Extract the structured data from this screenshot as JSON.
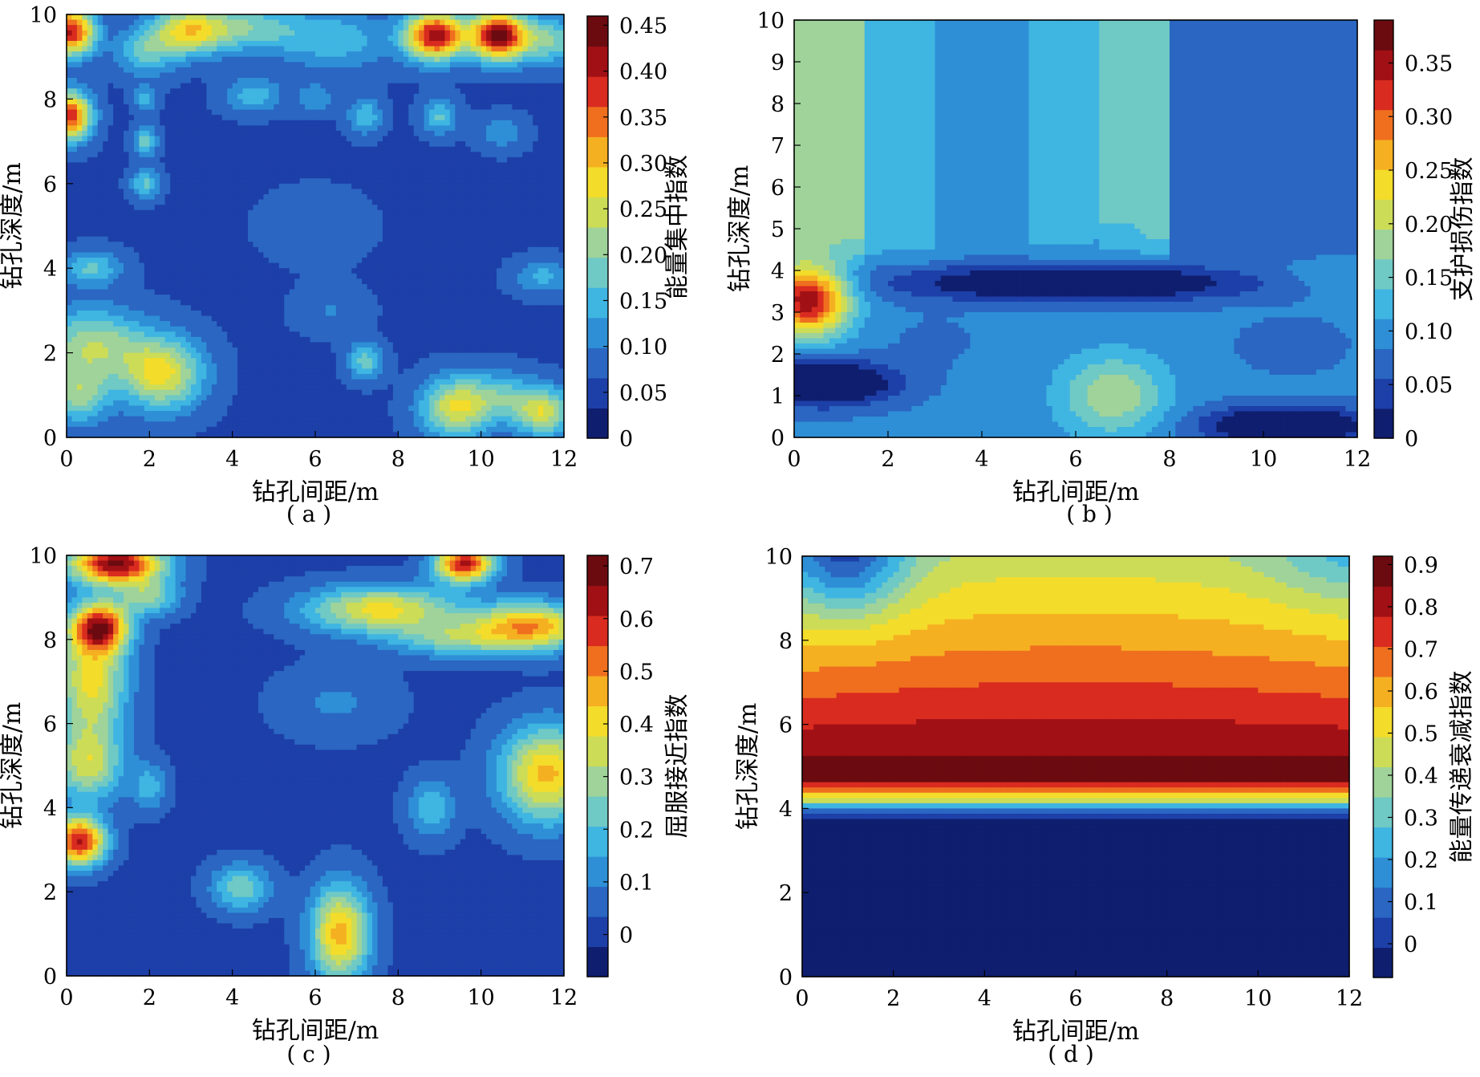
{
  "figure": {
    "captions": [
      "( a )",
      "( b )",
      "( c )",
      "( d )"
    ]
  },
  "colormap": [
    "#0f1e6e",
    "#1d3fa8",
    "#2a66c2",
    "#2e8fd6",
    "#3fb5e2",
    "#6fc9c4",
    "#9fd39a",
    "#cddc57",
    "#f4dc2a",
    "#f5b021",
    "#ef6f1f",
    "#d92b1f",
    "#a11014",
    "#6b0b10"
  ],
  "chart_data": [
    {
      "id": "a",
      "type": "heatmap",
      "xlabel": "钻孔间距/m",
      "ylabel": "钻孔深度/m",
      "colorbar_label": "能量集中指数",
      "xlim": [
        0,
        12
      ],
      "ylim": [
        0,
        10
      ],
      "xticks": [
        0,
        2,
        4,
        6,
        8,
        10,
        12
      ],
      "yticks": [
        0,
        2,
        4,
        6,
        8,
        10
      ],
      "clim": [
        0,
        0.46
      ],
      "cticks": [
        0,
        0.05,
        0.1,
        0.15,
        0.2,
        0.25,
        0.3,
        0.35,
        0.4,
        0.45
      ],
      "ctick_labels": [
        "0",
        "0.05",
        "0.10",
        "0.15",
        "0.20",
        "0.25",
        "0.30",
        "0.35",
        "0.40",
        "0.45"
      ],
      "base": 0.06,
      "hotspots": [
        {
          "x": 0.1,
          "y": 9.6,
          "v": 0.4,
          "sx": 0.4,
          "sy": 0.4
        },
        {
          "x": 2.9,
          "y": 9.6,
          "v": 0.24,
          "sx": 0.6,
          "sy": 0.4
        },
        {
          "x": 1.9,
          "y": 9.1,
          "v": 0.17,
          "sx": 0.5,
          "sy": 0.4
        },
        {
          "x": 4.2,
          "y": 9.7,
          "v": 0.19,
          "sx": 1.0,
          "sy": 0.4
        },
        {
          "x": 6.5,
          "y": 9.4,
          "v": 0.15,
          "sx": 1.0,
          "sy": 0.5
        },
        {
          "x": 8.9,
          "y": 9.5,
          "v": 0.42,
          "sx": 0.5,
          "sy": 0.4
        },
        {
          "x": 10.4,
          "y": 9.5,
          "v": 0.44,
          "sx": 0.45,
          "sy": 0.4
        },
        {
          "x": 11.6,
          "y": 9.4,
          "v": 0.2,
          "sx": 0.6,
          "sy": 0.4
        },
        {
          "x": 0.1,
          "y": 7.6,
          "v": 0.38,
          "sx": 0.35,
          "sy": 0.4
        },
        {
          "x": 1.9,
          "y": 8.0,
          "v": 0.15,
          "sx": 0.2,
          "sy": 0.2
        },
        {
          "x": 1.9,
          "y": 7.0,
          "v": 0.18,
          "sx": 0.2,
          "sy": 0.25
        },
        {
          "x": 1.9,
          "y": 6.0,
          "v": 0.17,
          "sx": 0.25,
          "sy": 0.25
        },
        {
          "x": 4.5,
          "y": 8.1,
          "v": 0.15,
          "sx": 0.5,
          "sy": 0.3
        },
        {
          "x": 6.0,
          "y": 8.0,
          "v": 0.13,
          "sx": 0.3,
          "sy": 0.25
        },
        {
          "x": 7.2,
          "y": 7.6,
          "v": 0.16,
          "sx": 0.3,
          "sy": 0.3
        },
        {
          "x": 9.0,
          "y": 7.6,
          "v": 0.17,
          "sx": 0.3,
          "sy": 0.3
        },
        {
          "x": 10.5,
          "y": 7.2,
          "v": 0.12,
          "sx": 0.4,
          "sy": 0.3
        },
        {
          "x": 6.0,
          "y": 5.0,
          "v": 0.09,
          "sx": 0.9,
          "sy": 0.6
        },
        {
          "x": 0.6,
          "y": 4.0,
          "v": 0.17,
          "sx": 0.5,
          "sy": 0.3
        },
        {
          "x": 11.5,
          "y": 3.8,
          "v": 0.14,
          "sx": 0.5,
          "sy": 0.3
        },
        {
          "x": 0.6,
          "y": 2.2,
          "v": 0.22,
          "sx": 0.9,
          "sy": 0.6
        },
        {
          "x": 2.3,
          "y": 1.5,
          "v": 0.27,
          "sx": 0.7,
          "sy": 0.6
        },
        {
          "x": 0.3,
          "y": 1.0,
          "v": 0.2,
          "sx": 0.5,
          "sy": 0.5
        },
        {
          "x": 7.2,
          "y": 1.8,
          "v": 0.18,
          "sx": 0.3,
          "sy": 0.3
        },
        {
          "x": 6.4,
          "y": 3.0,
          "v": 0.1,
          "sx": 0.6,
          "sy": 0.4
        },
        {
          "x": 9.4,
          "y": 0.7,
          "v": 0.26,
          "sx": 0.6,
          "sy": 0.5
        },
        {
          "x": 11.5,
          "y": 0.6,
          "v": 0.25,
          "sx": 0.5,
          "sy": 0.4
        },
        {
          "x": 10.5,
          "y": 1.0,
          "v": 0.15,
          "sx": 0.6,
          "sy": 0.4
        }
      ]
    },
    {
      "id": "b",
      "type": "heatmap",
      "xlabel": "钻孔间距/m",
      "ylabel": "钻孔深度/m",
      "colorbar_label": "支护损伤指数",
      "xlim": [
        0,
        12
      ],
      "ylim": [
        0,
        10
      ],
      "xticks": [
        0,
        2,
        4,
        6,
        8,
        10,
        12
      ],
      "yticks": [
        0,
        1,
        2,
        3,
        4,
        5,
        6,
        7,
        8,
        9,
        10
      ],
      "clim": [
        0,
        0.39
      ],
      "cticks": [
        0,
        0.05,
        0.1,
        0.15,
        0.2,
        0.25,
        0.3,
        0.35
      ],
      "ctick_labels": [
        "0",
        "0.05",
        "0.10",
        "0.15",
        "0.20",
        "0.25",
        "0.30",
        "0.35"
      ],
      "upper_bands": [
        {
          "x_from": 0,
          "x_to": 1.5,
          "v": 0.17
        },
        {
          "x_from": 1.5,
          "x_to": 3.0,
          "v": 0.13
        },
        {
          "x_from": 3.0,
          "x_to": 5.0,
          "v": 0.1
        },
        {
          "x_from": 5.0,
          "x_to": 6.5,
          "v": 0.12
        },
        {
          "x_from": 6.5,
          "x_to": 8.0,
          "v": 0.14
        },
        {
          "x_from": 8.0,
          "x_to": 9.5,
          "v": 0.08
        },
        {
          "x_from": 9.5,
          "x_to": 12,
          "v": 0.06
        }
      ],
      "upper_from_y": 4.0,
      "base": 0.09,
      "hotspots": [
        {
          "x": 0.3,
          "y": 3.3,
          "v": 0.36,
          "sx": 0.6,
          "sy": 0.6
        },
        {
          "x": 0.6,
          "y": 1.3,
          "v": -0.07,
          "sx": 1.0,
          "sy": 0.35
        },
        {
          "x": 3.0,
          "y": 2.3,
          "v": 0.08,
          "sx": 0.8,
          "sy": 0.5
        },
        {
          "x": 6.8,
          "y": 1.0,
          "v": 0.19,
          "sx": 0.8,
          "sy": 0.7
        },
        {
          "x": 11.5,
          "y": 3.9,
          "v": 0.11,
          "sx": 0.8,
          "sy": 0.3
        },
        {
          "x": 10.6,
          "y": 2.2,
          "v": 0.06,
          "sx": 0.7,
          "sy": 0.4
        },
        {
          "x": 6.0,
          "y": 3.7,
          "v": -0.04,
          "sx": 2.5,
          "sy": 0.3
        },
        {
          "x": 10.5,
          "y": 0.3,
          "v": -0.05,
          "sx": 1.2,
          "sy": 0.3
        },
        {
          "x": 6.8,
          "y": 4.7,
          "v": 0.08,
          "sx": 0.3,
          "sy": 0.2
        }
      ]
    },
    {
      "id": "c",
      "type": "heatmap",
      "xlabel": "钻孔间距/m",
      "ylabel": "钻孔深度/m",
      "colorbar_label": "屈服接近指数",
      "xlim": [
        0,
        12
      ],
      "ylim": [
        0,
        10
      ],
      "xticks": [
        0,
        2,
        4,
        6,
        8,
        10,
        12
      ],
      "yticks": [
        0,
        2,
        4,
        6,
        8,
        10
      ],
      "clim": [
        -0.08,
        0.72
      ],
      "cticks": [
        0,
        0.1,
        0.2,
        0.3,
        0.4,
        0.5,
        0.6,
        0.7
      ],
      "ctick_labels": [
        "0",
        "0.1",
        "0.2",
        "0.3",
        "0.4",
        "0.5",
        "0.6",
        "0.7"
      ],
      "base": 0.02,
      "hotspots": [
        {
          "x": 1.2,
          "y": 9.8,
          "v": 0.68,
          "sx": 0.8,
          "sy": 0.35
        },
        {
          "x": 9.6,
          "y": 9.8,
          "v": 0.62,
          "sx": 0.5,
          "sy": 0.3
        },
        {
          "x": 0.8,
          "y": 8.3,
          "v": 0.56,
          "sx": 0.5,
          "sy": 0.4
        },
        {
          "x": 0.6,
          "y": 7.0,
          "v": 0.4,
          "sx": 0.6,
          "sy": 1.0
        },
        {
          "x": 0.5,
          "y": 5.0,
          "v": 0.32,
          "sx": 0.6,
          "sy": 0.6
        },
        {
          "x": 0.3,
          "y": 3.2,
          "v": 0.62,
          "sx": 0.45,
          "sy": 0.4
        },
        {
          "x": 7.6,
          "y": 8.7,
          "v": 0.4,
          "sx": 1.3,
          "sy": 0.4
        },
        {
          "x": 11.2,
          "y": 8.3,
          "v": 0.48,
          "sx": 1.0,
          "sy": 0.4
        },
        {
          "x": 11.6,
          "y": 4.8,
          "v": 0.45,
          "sx": 0.8,
          "sy": 0.8
        },
        {
          "x": 9.3,
          "y": 8.0,
          "v": 0.22,
          "sx": 1.0,
          "sy": 0.3
        },
        {
          "x": 4.2,
          "y": 2.1,
          "v": 0.25,
          "sx": 0.5,
          "sy": 0.4
        },
        {
          "x": 6.6,
          "y": 1.0,
          "v": 0.46,
          "sx": 0.5,
          "sy": 0.8
        },
        {
          "x": 2.0,
          "y": 4.5,
          "v": 0.18,
          "sx": 0.3,
          "sy": 0.4
        },
        {
          "x": 6.5,
          "y": 6.5,
          "v": 0.1,
          "sx": 1.0,
          "sy": 0.6
        },
        {
          "x": 8.8,
          "y": 4.0,
          "v": 0.2,
          "sx": 0.4,
          "sy": 0.5
        },
        {
          "x": 2.0,
          "y": 9.0,
          "v": 0.26,
          "sx": 0.5,
          "sy": 0.3
        },
        {
          "x": 1.0,
          "y": 0.6,
          "v": 0.01,
          "sx": 2.0,
          "sy": 0.4
        }
      ]
    },
    {
      "id": "d",
      "type": "heatmap",
      "xlabel": "钻孔间距/m",
      "ylabel": "钻孔深度/m",
      "colorbar_label": "能量传递衰减指数",
      "xlim": [
        0,
        12
      ],
      "ylim": [
        0,
        10
      ],
      "xticks": [
        0,
        2,
        4,
        6,
        8,
        10,
        12
      ],
      "yticks": [
        0,
        2,
        4,
        6,
        8,
        10
      ],
      "clim": [
        -0.08,
        0.92
      ],
      "cticks": [
        0,
        0.1,
        0.2,
        0.3,
        0.4,
        0.5,
        0.6,
        0.7,
        0.8,
        0.9
      ],
      "ctick_labels": [
        "0",
        "0.1",
        "0.2",
        "0.3",
        "0.4",
        "0.5",
        "0.6",
        "0.7",
        "0.8",
        "0.9"
      ],
      "peak_depth": 4.7,
      "peak_value": 0.9,
      "top_value": 0.3,
      "bottom_value": -0.05,
      "transition_depth": 4.2,
      "corner_lows": [
        {
          "x": 1.0,
          "y": 10.0,
          "v": -0.35,
          "sx": 0.9,
          "sy": 1.0
        },
        {
          "x": 12.0,
          "y": 10.0,
          "v": -0.12,
          "sx": 1.2,
          "sy": 0.8
        }
      ]
    }
  ]
}
